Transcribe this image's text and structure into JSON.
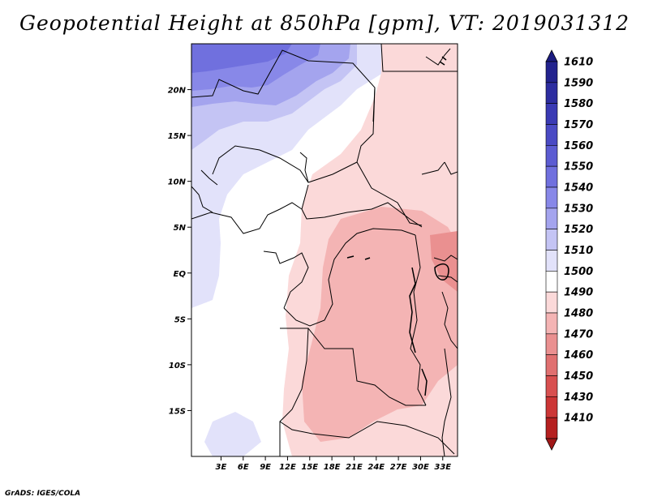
{
  "title": "Geopotential Height at 850hPa [gpm], VT: 2019031312",
  "credit": "GrADS: IGES/COLA",
  "map": {
    "lat_range": [
      -20,
      25
    ],
    "lon_range": [
      -1,
      35
    ],
    "lat_ticks": [
      {
        "value": 20,
        "label": "20N"
      },
      {
        "value": 15,
        "label": "15N"
      },
      {
        "value": 10,
        "label": "10N"
      },
      {
        "value": 5,
        "label": "5N"
      },
      {
        "value": 0,
        "label": "EQ"
      },
      {
        "value": -5,
        "label": "5S"
      },
      {
        "value": -10,
        "label": "10S"
      },
      {
        "value": -15,
        "label": "15S"
      }
    ],
    "lon_ticks": [
      {
        "value": 3,
        "label": "3E"
      },
      {
        "value": 6,
        "label": "6E"
      },
      {
        "value": 9,
        "label": "9E"
      },
      {
        "value": 12,
        "label": "12E"
      },
      {
        "value": 15,
        "label": "15E"
      },
      {
        "value": 18,
        "label": "18E"
      },
      {
        "value": 21,
        "label": "21E"
      },
      {
        "value": 24,
        "label": "24E"
      },
      {
        "value": 27,
        "label": "27E"
      },
      {
        "value": 30,
        "label": "30E"
      },
      {
        "value": 33,
        "label": "33E"
      }
    ]
  },
  "colorbar": {
    "levels": [
      {
        "label": "1610",
        "color": "#23238e"
      },
      {
        "label": "1590",
        "color": "#2d2da0"
      },
      {
        "label": "1580",
        "color": "#3a3ab4"
      },
      {
        "label": "1570",
        "color": "#4a4ac4"
      },
      {
        "label": "1560",
        "color": "#5c5cd2"
      },
      {
        "label": "1550",
        "color": "#7070de"
      },
      {
        "label": "1540",
        "color": "#8888e8"
      },
      {
        "label": "1530",
        "color": "#a4a4ee"
      },
      {
        "label": "1520",
        "color": "#c4c4f4"
      },
      {
        "label": "1510",
        "color": "#e2e2fa"
      },
      {
        "label": "1500",
        "color": "#ffffff"
      },
      {
        "label": "1490",
        "color": "#fbd9d9"
      },
      {
        "label": "1480",
        "color": "#f4b4b4"
      },
      {
        "label": "1470",
        "color": "#ea9090"
      },
      {
        "label": "1460",
        "color": "#e07070"
      },
      {
        "label": "1450",
        "color": "#d85050"
      },
      {
        "label": "1430",
        "color": "#cc3636"
      },
      {
        "label": "1410",
        "color": "#b52020"
      }
    ],
    "top_color": "#1c1c80",
    "bottom_color": "#a01818"
  }
}
